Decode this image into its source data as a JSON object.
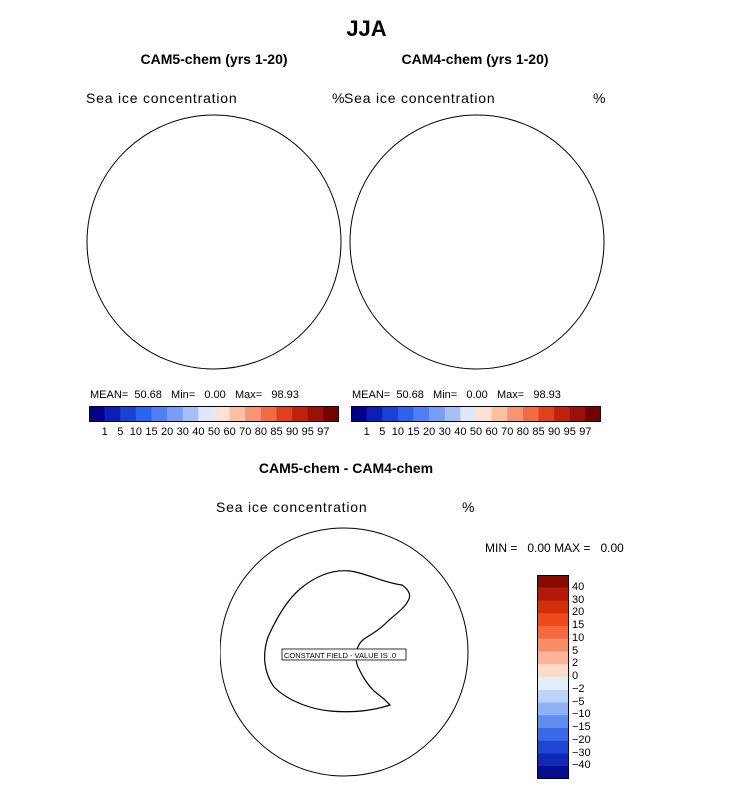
{
  "page_title": "JJA",
  "chart_data": [
    {
      "type": "heatmap",
      "title": "CAM5-chem (yrs 1-20)",
      "field_label": "Sea ice concentration",
      "units": "%",
      "stats": {
        "mean_label": "MEAN=",
        "mean": "50.68",
        "min_label": "Min=",
        "min": "0.00",
        "max_label": "Max=",
        "max": "98.93"
      },
      "colorbar": {
        "levels": [
          "1",
          "5",
          "10",
          "15",
          "20",
          "30",
          "40",
          "50",
          "60",
          "70",
          "80",
          "85",
          "90",
          "95",
          "97"
        ],
        "colors": [
          "#00008c",
          "#0a1fb4",
          "#1a42d6",
          "#2d62ec",
          "#4f80f2",
          "#779df5",
          "#a6c0f7",
          "#dde9fa",
          "#fde2d2",
          "#fbbfa2",
          "#f99473",
          "#f46a45",
          "#e0401c",
          "#c0220b",
          "#9a1206",
          "#760000"
        ]
      }
    },
    {
      "type": "heatmap",
      "title": "CAM4-chem (yrs 1-20)",
      "field_label": "Sea ice concentration",
      "units": "%",
      "stats": {
        "mean_label": "MEAN=",
        "mean": "50.68",
        "min_label": "Min=",
        "min": "0.00",
        "max_label": "Max=",
        "max": "98.93"
      },
      "colorbar": {
        "levels": [
          "1",
          "5",
          "10",
          "15",
          "20",
          "30",
          "40",
          "50",
          "60",
          "70",
          "80",
          "85",
          "90",
          "95",
          "97"
        ],
        "colors": [
          "#00008c",
          "#0a1fb4",
          "#1a42d6",
          "#2d62ec",
          "#4f80f2",
          "#779df5",
          "#a6c0f7",
          "#dde9fa",
          "#fde2d2",
          "#fbbfa2",
          "#f99473",
          "#f46a45",
          "#e0401c",
          "#c0220b",
          "#9a1206",
          "#760000"
        ]
      }
    },
    {
      "type": "heatmap",
      "title": "CAM5-chem - CAM4-chem",
      "field_label": "Sea ice concentration",
      "units": "%",
      "min_label": "MIN =",
      "min": "0.00",
      "max_label": "MAX =",
      "max": "0.00",
      "annotation": "CONSTANT FIELD - VALUE IS .0",
      "colorbar": {
        "levels": [
          "40",
          "30",
          "20",
          "15",
          "10",
          "5",
          "2",
          "0",
          "−2",
          "−5",
          "−10",
          "−15",
          "−20",
          "−30",
          "−40"
        ],
        "colors": [
          "#8b0a00",
          "#b31a05",
          "#d12e0c",
          "#ee4a1c",
          "#f46a3e",
          "#f88e68",
          "#fab598",
          "#fcdcc8",
          "#e3eefb",
          "#bcd2f8",
          "#8fb1f5",
          "#5f8cef",
          "#3b68e8",
          "#1f45d4",
          "#1028b6",
          "#050c90"
        ]
      }
    }
  ]
}
